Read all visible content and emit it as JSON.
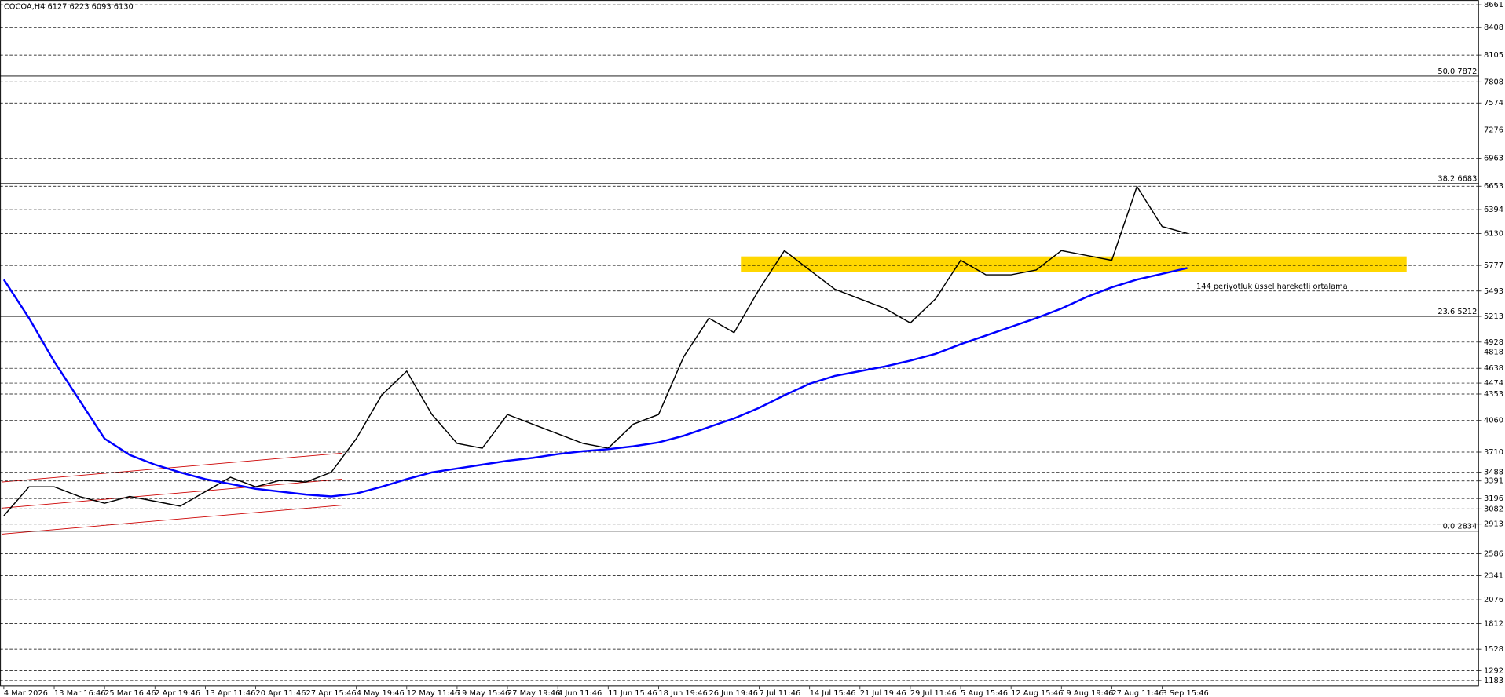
{
  "chart_data": {
    "type": "line",
    "title": "COCOA,H4 6127 6223 6093 6130",
    "annotation": "144 periyotluk üssel hareketli ortalama",
    "categories": [
      "4 Mar 2026",
      null,
      "13 Mar 16:46",
      null,
      "25 Mar 16:46",
      null,
      "2 Apr 19:46",
      null,
      "13 Apr 11:46",
      null,
      "20 Apr 11:46",
      null,
      "27 Apr 15:46",
      null,
      "4 May 19:46",
      null,
      "12 May 11:46",
      null,
      "19 May 15:46",
      null,
      "27 May 19:46",
      null,
      "4 Jun 11:46",
      null,
      "11 Jun 15:46",
      null,
      "18 Jun 19:46",
      null,
      "26 Jun 19:46",
      null,
      "7 Jul 11:46",
      null,
      "14 Jul 15:46",
      null,
      "21 Jul 19:46",
      null,
      "29 Jul 11:46",
      null,
      "5 Aug 15:46",
      null,
      "12 Aug 15:46",
      null,
      "19 Aug 19:46",
      null,
      "27 Aug 11:46",
      null,
      "3 Sep 15:46",
      null
    ],
    "series": [
      {
        "name": "COCOA",
        "color": "#000000",
        "values": [
          3006,
          3326,
          3326,
          3219,
          3144,
          3219,
          3166,
          3112,
          3272,
          3432,
          3326,
          3400,
          3379,
          3486,
          3859,
          4339,
          4606,
          4126,
          3806,
          3753,
          4126,
          4019,
          3913,
          3806,
          3753,
          4019,
          4126,
          4766,
          5193,
          5033,
          5513,
          5940,
          5726,
          5513,
          5406,
          5299,
          5140,
          5406,
          5833,
          5673,
          5673,
          5726,
          5940,
          5887,
          5833,
          6650,
          6207,
          6130
        ]
      },
      {
        "name": "EMA 144",
        "color": "#0000ff",
        "values": [
          5620,
          5193,
          4713,
          4286,
          3859,
          3678,
          3571,
          3486,
          3411,
          3358,
          3304,
          3272,
          3240,
          3219,
          3251,
          3326,
          3411,
          3486,
          3528,
          3571,
          3614,
          3646,
          3688,
          3720,
          3742,
          3774,
          3817,
          3891,
          3987,
          4083,
          4201,
          4339,
          4467,
          4553,
          4606,
          4659,
          4723,
          4798,
          4905,
          5001,
          5097,
          5193,
          5299,
          5427,
          5534,
          5620,
          5684,
          5748
        ]
      }
    ],
    "ylim": [
      1117,
      8714
    ],
    "yticks": [
      8661,
      8408,
      8105,
      7808,
      7574,
      7276,
      6963,
      6653,
      6394,
      6130,
      5777,
      5493,
      5213,
      4928,
      4818,
      4638,
      4474,
      4353,
      4060,
      3710,
      3488,
      3391,
      3196,
      3082,
      2913,
      2586,
      2341,
      2076,
      1812,
      1528,
      1292,
      1183
    ],
    "grid": true,
    "levels": [
      {
        "value": 7872,
        "label": "50.0 7872"
      },
      {
        "value": 6683,
        "label": "38.2 6683"
      },
      {
        "value": 5212,
        "label": "23.6 5212"
      },
      {
        "value": 2834,
        "label": "0.0 2834"
      }
    ],
    "zone": [
      5705,
      5876
    ],
    "zone_color": "#ffd700",
    "annotation_color": "#0000ff"
  }
}
